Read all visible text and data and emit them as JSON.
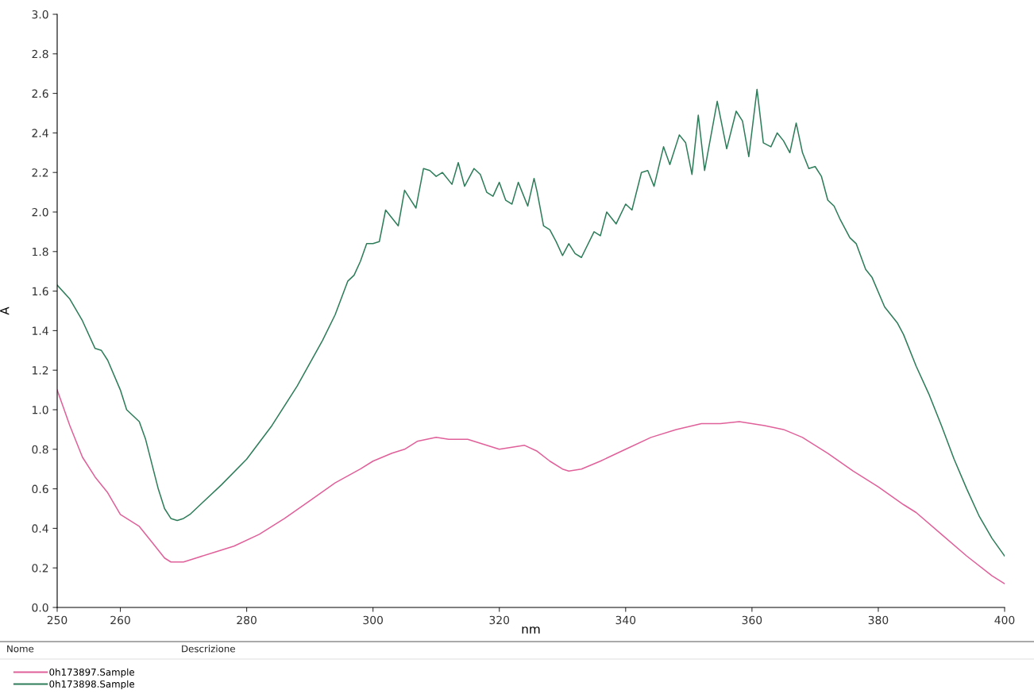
{
  "chart_data": {
    "type": "line",
    "xlabel": "nm",
    "ylabel": "A",
    "xlim": [
      250,
      400
    ],
    "xticks": [
      250,
      260,
      280,
      300,
      320,
      340,
      360,
      380,
      400
    ],
    "ylim": [
      0,
      3
    ],
    "yticks": [
      {
        "value": 0,
        "label": "0.0"
      },
      {
        "value": 0.2,
        "label": "0.2"
      },
      {
        "value": 0.4,
        "label": "0.4"
      },
      {
        "value": 0.6,
        "label": "0.6"
      },
      {
        "value": 0.8,
        "label": "0.8"
      },
      {
        "value": 1,
        "label": "1.0"
      },
      {
        "value": 1.2,
        "label": "1.2"
      },
      {
        "value": 1.4,
        "label": "1.4"
      },
      {
        "value": 1.6,
        "label": "1.6"
      },
      {
        "value": 1.8,
        "label": "1.8"
      },
      {
        "value": 2,
        "label": "2.0"
      },
      {
        "value": 2.2,
        "label": "2.2"
      },
      {
        "value": 2.4,
        "label": "2.4"
      },
      {
        "value": 2.6,
        "label": "2.6"
      },
      {
        "value": 2.8,
        "label": "2.8"
      },
      {
        "value": 3,
        "label": "3.0"
      }
    ],
    "grid": false,
    "legend": "bottom left",
    "marker": "none",
    "line_style": "solid",
    "annotations": [
      "Nome",
      "Descrizione"
    ],
    "series": [
      {
        "name": "0h173897.Sample",
        "color": "#e0609a",
        "x": [
          250,
          252,
          254,
          256,
          258,
          260,
          262,
          263,
          265,
          267,
          268,
          270,
          272,
          275,
          278,
          282,
          286,
          290,
          294,
          298,
          300,
          303,
          305,
          307,
          310,
          312,
          315,
          318,
          320,
          322,
          324,
          326,
          328,
          330,
          331,
          333,
          336,
          340,
          344,
          348,
          352,
          355,
          358,
          360,
          362,
          365,
          368,
          372,
          376,
          380,
          384,
          386,
          390,
          394,
          398,
          400
        ],
        "values": [
          1.1,
          0.92,
          0.76,
          0.66,
          0.58,
          0.47,
          0.43,
          0.41,
          0.33,
          0.25,
          0.23,
          0.23,
          0.25,
          0.28,
          0.31,
          0.37,
          0.45,
          0.54,
          0.63,
          0.7,
          0.74,
          0.78,
          0.8,
          0.84,
          0.86,
          0.85,
          0.85,
          0.82,
          0.8,
          0.81,
          0.82,
          0.79,
          0.74,
          0.7,
          0.69,
          0.7,
          0.74,
          0.8,
          0.86,
          0.9,
          0.93,
          0.93,
          0.94,
          0.93,
          0.92,
          0.9,
          0.86,
          0.78,
          0.69,
          0.61,
          0.52,
          0.48,
          0.37,
          0.26,
          0.16,
          0.12
        ]
      },
      {
        "name": "0h173898.Sample",
        "color": "#2e7d5a",
        "x": [
          250,
          252,
          254,
          256,
          257,
          258,
          260,
          261,
          263,
          264,
          266,
          267,
          268,
          269,
          270,
          271,
          273,
          276,
          280,
          284,
          288,
          292,
          294,
          296,
          297,
          298,
          299,
          300,
          301,
          302,
          303,
          304,
          305,
          306,
          306.8,
          308,
          309,
          310,
          311,
          312.5,
          313.5,
          314.5,
          316,
          317,
          318,
          319,
          320,
          321,
          322,
          323,
          324.5,
          325.5,
          326,
          327,
          328,
          329,
          330,
          331,
          332,
          333,
          335,
          336,
          337,
          338.5,
          340,
          341,
          342.5,
          343.5,
          344.5,
          346,
          347,
          348.5,
          349.5,
          350.5,
          351.5,
          352.5,
          354.5,
          356,
          357.5,
          358.5,
          359.5,
          360.8,
          361.8,
          363,
          364,
          365,
          366,
          367,
          368,
          369,
          370,
          371,
          372,
          373,
          374,
          375.5,
          376.5,
          378,
          379,
          381,
          383,
          384,
          386,
          388,
          390,
          392,
          394,
          396,
          398,
          400
        ],
        "values": [
          1.63,
          1.56,
          1.45,
          1.31,
          1.3,
          1.25,
          1.1,
          1.0,
          0.94,
          0.85,
          0.6,
          0.5,
          0.45,
          0.44,
          0.45,
          0.47,
          0.53,
          0.62,
          0.75,
          0.92,
          1.12,
          1.35,
          1.48,
          1.65,
          1.68,
          1.75,
          1.84,
          1.84,
          1.85,
          2.01,
          1.97,
          1.93,
          2.11,
          2.06,
          2.02,
          2.22,
          2.21,
          2.18,
          2.2,
          2.14,
          2.25,
          2.13,
          2.22,
          2.19,
          2.1,
          2.08,
          2.15,
          2.06,
          2.04,
          2.15,
          2.03,
          2.17,
          2.1,
          1.93,
          1.91,
          1.85,
          1.78,
          1.84,
          1.79,
          1.77,
          1.9,
          1.88,
          2.0,
          1.94,
          2.04,
          2.01,
          2.2,
          2.21,
          2.13,
          2.33,
          2.24,
          2.39,
          2.35,
          2.19,
          2.49,
          2.21,
          2.56,
          2.32,
          2.51,
          2.46,
          2.28,
          2.62,
          2.35,
          2.33,
          2.4,
          2.36,
          2.3,
          2.45,
          2.3,
          2.22,
          2.23,
          2.18,
          2.06,
          2.03,
          1.96,
          1.87,
          1.84,
          1.71,
          1.67,
          1.52,
          1.44,
          1.38,
          1.22,
          1.08,
          0.92,
          0.75,
          0.6,
          0.46,
          0.35,
          0.26
        ]
      }
    ]
  }
}
